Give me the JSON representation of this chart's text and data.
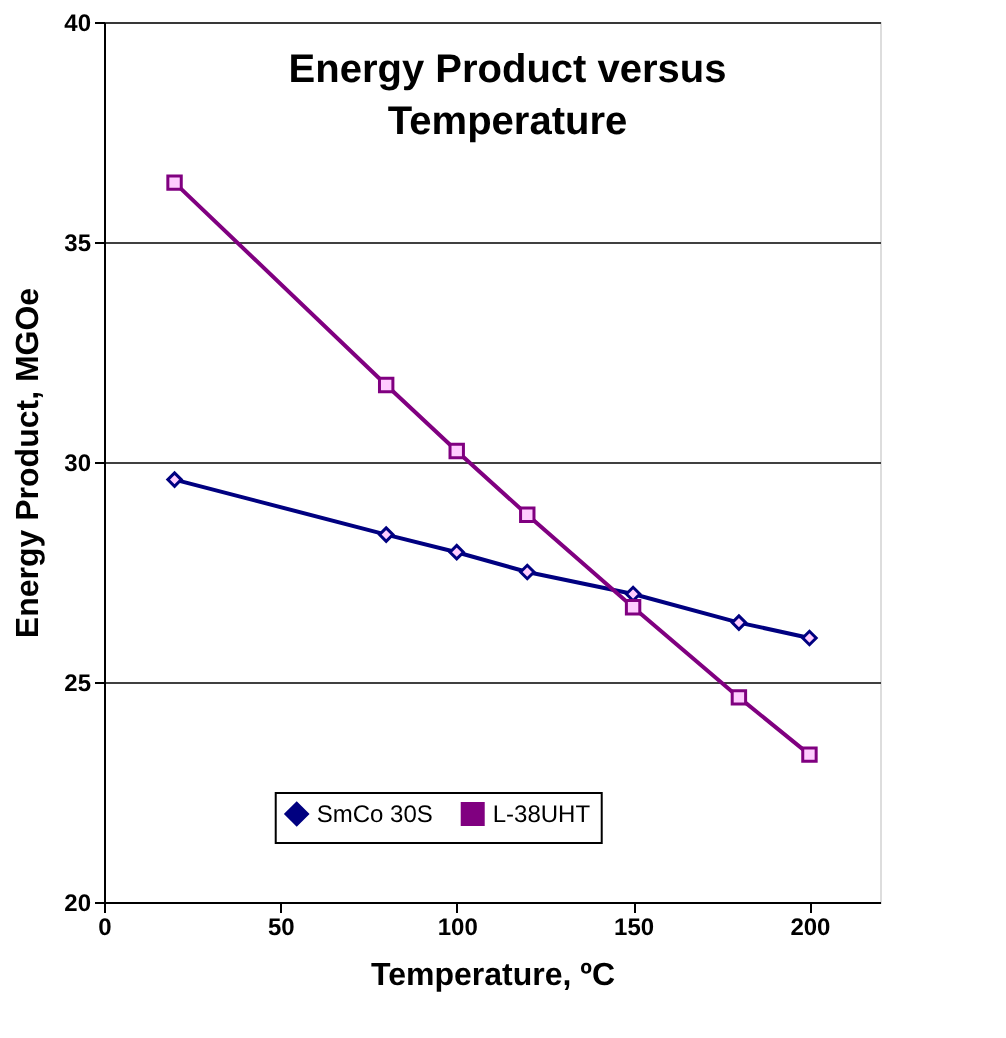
{
  "chart_data": {
    "type": "line",
    "title": "Energy Product versus Temperature",
    "xlabel": "Temperature, ºC",
    "ylabel": "Energy Product, MGOe",
    "x": [
      20,
      80,
      100,
      120,
      150,
      180,
      200
    ],
    "series": [
      {
        "name": "SmCo 30S",
        "color": "#000080",
        "marker": "diamond",
        "values": [
          29.6,
          28.35,
          27.95,
          27.5,
          27.0,
          26.35,
          26.0
        ]
      },
      {
        "name": "L-38UHT",
        "color": "#800080",
        "marker": "square",
        "values": [
          36.35,
          31.75,
          30.25,
          28.8,
          26.7,
          24.65,
          23.35
        ]
      }
    ],
    "xlim": [
      0,
      220
    ],
    "xticks": [
      0,
      50,
      100,
      150,
      200
    ],
    "ylim": [
      20,
      40
    ],
    "yticks": [
      20,
      25,
      30,
      35,
      40
    ],
    "grid": "y",
    "legend": "bottom",
    "line_style": "solid"
  }
}
